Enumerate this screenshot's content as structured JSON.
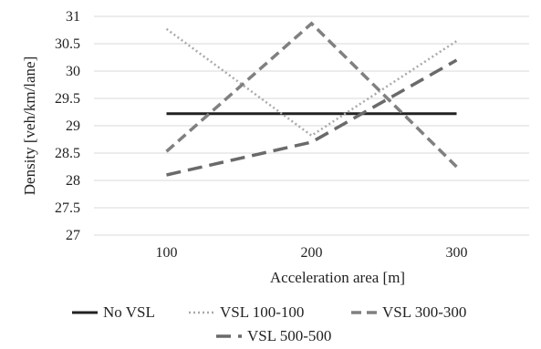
{
  "chart_data": {
    "type": "line",
    "title": "",
    "xlabel": "Acceleration area [m]",
    "ylabel": "Density [veh/km/lane]",
    "categories": [
      "100",
      "200",
      "300"
    ],
    "ylim": [
      27,
      31
    ],
    "yticks": [
      "27",
      "27.5",
      "28",
      "28.5",
      "29",
      "29.5",
      "30",
      "30.5",
      "31"
    ],
    "grid": true,
    "legend_position": "bottom",
    "series": [
      {
        "name": "No VSL",
        "values": [
          29.22,
          29.22,
          29.22
        ],
        "color": "#222222",
        "dash": "solid"
      },
      {
        "name": "VSL 100-100",
        "values": [
          30.77,
          28.82,
          30.55
        ],
        "color": "#aaaaaa",
        "dash": "dotted"
      },
      {
        "name": "VSL 300-300",
        "values": [
          28.53,
          30.87,
          28.25
        ],
        "color": "#808080",
        "dash": "dashed"
      },
      {
        "name": "VSL 500-500",
        "values": [
          28.1,
          28.7,
          30.2
        ],
        "color": "#6a6a6a",
        "dash": "longdash"
      }
    ]
  }
}
